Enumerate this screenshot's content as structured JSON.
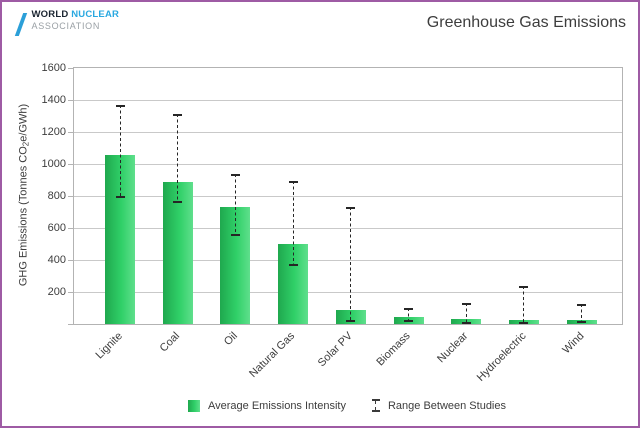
{
  "frame": {
    "border_color": "#9e5ba4",
    "background": "#ffffff"
  },
  "logo": {
    "world": "WORLD",
    "nuclear": "NUCLEAR",
    "association": "ASSOCIATION",
    "world_color": "#1a2430",
    "nuclear_color": "#29a8e0",
    "association_color": "#9aa0a5",
    "slash_color": "#2b9fd8"
  },
  "chart_data": {
    "type": "bar",
    "title": "Greenhouse Gas Emissions",
    "ylabel": "GHG Emissions (Tonnes CO₂e/GWh)",
    "ylabel_parts": {
      "pre": "GHG Emissions (Tonnes CO",
      "sub": "2",
      "post": "e/GWh)"
    },
    "xlabel": "",
    "ylim": [
      0,
      1600
    ],
    "ytick_interval": 200,
    "yticks": [
      200,
      400,
      600,
      800,
      1000,
      1200,
      1400,
      1600
    ],
    "grid": true,
    "categories": [
      "Lignite",
      "Coal",
      "Oil",
      "Natural Gas",
      "Solar PV",
      "Biomass",
      "Nuclear",
      "Hydroelectric",
      "Wind"
    ],
    "series": [
      {
        "name": "Average Emissions Intensity",
        "type": "bar",
        "values": [
          1054,
          888,
          733,
          499,
          85,
          45,
          29,
          26,
          26
        ]
      },
      {
        "name": "Range Between Studies",
        "type": "errorbar",
        "low": [
          790,
          756,
          547,
          362,
          13,
          10,
          2,
          2,
          6
        ],
        "high": [
          1372,
          1310,
          935,
          891,
          731,
          101,
          130,
          237,
          124
        ]
      }
    ],
    "legend_position": "bottom",
    "legend": [
      {
        "label": "Average Emissions Intensity",
        "icon": "bar-swatch-icon"
      },
      {
        "label": "Range Between Studies",
        "icon": "errorbar-swatch-icon"
      }
    ],
    "colors": {
      "bar_gradient_start": "#1fa84e",
      "bar_gradient_mid": "#30d068",
      "bar_gradient_end": "#5fdf8c",
      "errorbar": "#262626",
      "gridline": "#c9c9c9",
      "text": "#3d3d3d"
    }
  }
}
